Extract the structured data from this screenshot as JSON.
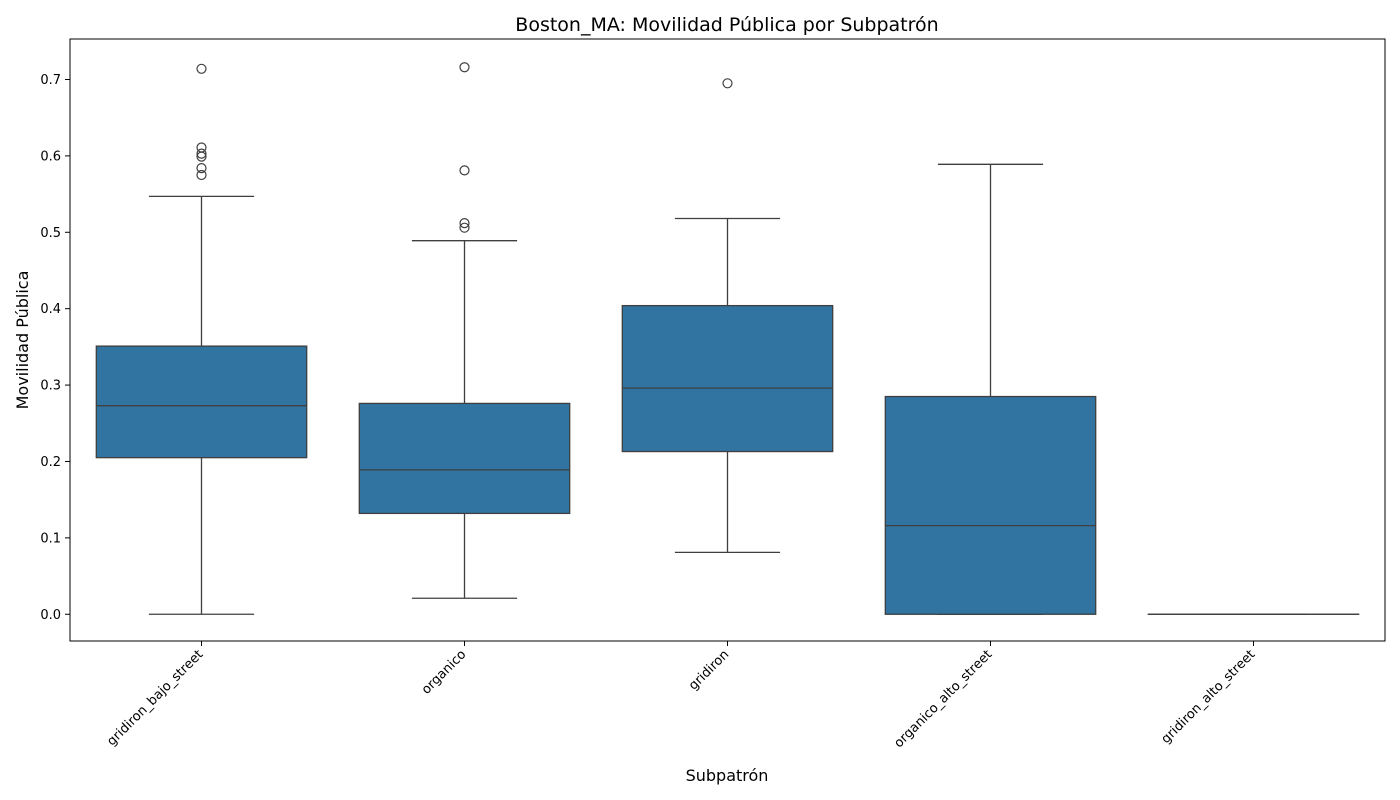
{
  "chart_data": {
    "type": "box",
    "title": "Boston_MA: Movilidad Pública por Subpatrón",
    "xlabel": "Subpatrón",
    "ylabel": "Movilidad Pública",
    "ylim": [
      -0.035,
      0.753
    ],
    "yticks": [
      "0.0",
      "0.1",
      "0.2",
      "0.3",
      "0.4",
      "0.5",
      "0.6",
      "0.7"
    ],
    "grid": false,
    "box_color": "#3274a1",
    "line_color": "#3f3f3f",
    "categories": [
      "gridiron_bajo_street",
      "organico",
      "gridiron",
      "organico_alto_street",
      "gridiron_alto_street"
    ],
    "boxes": [
      {
        "category": "gridiron_bajo_street",
        "whisker_low": 0.0,
        "q1": 0.205,
        "median": 0.273,
        "q3": 0.351,
        "whisker_high": 0.547,
        "outliers": [
          0.714,
          0.611,
          0.603,
          0.599,
          0.584,
          0.575
        ]
      },
      {
        "category": "organico",
        "whisker_low": 0.021,
        "q1": 0.132,
        "median": 0.189,
        "q3": 0.276,
        "whisker_high": 0.489,
        "outliers": [
          0.716,
          0.581,
          0.512,
          0.506
        ]
      },
      {
        "category": "gridiron",
        "whisker_low": 0.081,
        "q1": 0.213,
        "median": 0.296,
        "q3": 0.404,
        "whisker_high": 0.518,
        "outliers": [
          0.695
        ]
      },
      {
        "category": "organico_alto_street",
        "whisker_low": 0.0,
        "q1": 0.0,
        "median": 0.116,
        "q3": 0.285,
        "whisker_high": 0.589,
        "outliers": []
      },
      {
        "category": "gridiron_alto_street",
        "whisker_low": 0.0,
        "q1": 0.0,
        "median": 0.0,
        "q3": 0.0,
        "whisker_high": 0.0,
        "outliers": []
      }
    ]
  }
}
